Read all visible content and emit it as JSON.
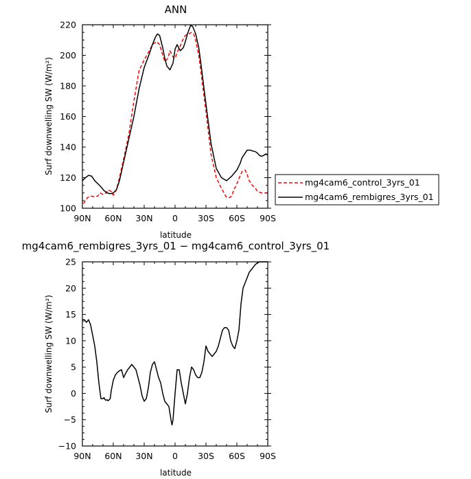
{
  "chart_data": [
    {
      "type": "line",
      "title": "ANN",
      "xlabel": "latitude",
      "ylabel": "Surf downwelling SW (W/m²)",
      "xlim": [
        90,
        -90
      ],
      "ylim": [
        100,
        220
      ],
      "xticks": [
        90,
        60,
        30,
        0,
        -30,
        -60,
        -90
      ],
      "xtick_labels": [
        "90N",
        "60N",
        "30N",
        "0",
        "30S",
        "60S",
        "90S"
      ],
      "yticks": [
        100,
        120,
        140,
        160,
        180,
        200,
        220
      ],
      "ytick_labels": [
        "100",
        "120",
        "140",
        "160",
        "180",
        "200",
        "220"
      ],
      "grid": false,
      "legend_position": "right",
      "series": [
        {
          "name": "mg4cam6_control_3yrs_01",
          "color": "#ff0000",
          "dash": "dashed",
          "x": [
            89,
            85,
            82,
            78,
            75,
            73,
            70,
            67,
            65,
            62,
            60,
            57,
            54,
            50,
            45,
            40,
            35,
            30,
            25,
            22,
            20,
            18,
            15,
            12,
            10,
            7,
            5,
            2,
            0,
            -2,
            -5,
            -8,
            -10,
            -13,
            -16,
            -18,
            -20,
            -23,
            -25,
            -30,
            -35,
            -40,
            -45,
            -50,
            -53,
            -55,
            -57,
            -60,
            -63,
            -65,
            -68,
            -70,
            -72,
            -75,
            -78,
            -80,
            -82,
            -84,
            -86,
            -88,
            -90
          ],
          "y": [
            103,
            107,
            108,
            107.5,
            108,
            110,
            109,
            110,
            112,
            111,
            108.5,
            112,
            120,
            132,
            148,
            170,
            190,
            197,
            203,
            207,
            208,
            209,
            207,
            200,
            196,
            198,
            203,
            199,
            198,
            202,
            206,
            211,
            213,
            214,
            215,
            214,
            210,
            200,
            190,
            163,
            135,
            120,
            113,
            107,
            107,
            108,
            112,
            116,
            121,
            124,
            125,
            122,
            118,
            115,
            113,
            111,
            110.5,
            110,
            110,
            110,
            110
          ]
        },
        {
          "name": "mg4cam6_rembigres_3yrs_01",
          "color": "#000000",
          "dash": "solid",
          "x": [
            90,
            87,
            84,
            81,
            78,
            75,
            72,
            69,
            66,
            63,
            60,
            57,
            54,
            50,
            45,
            40,
            35,
            30,
            25,
            22,
            19,
            17,
            15,
            12,
            10,
            8,
            5,
            2,
            0,
            -2,
            -5,
            -8,
            -10,
            -12,
            -15,
            -17,
            -20,
            -23,
            -25,
            -30,
            -35,
            -40,
            -45,
            -50,
            -55,
            -60,
            -63,
            -65,
            -68,
            -70,
            -73,
            -75,
            -78,
            -80,
            -82,
            -84,
            -86,
            -88,
            -90
          ],
          "y": [
            118,
            120,
            121.5,
            121,
            118,
            116,
            114,
            111.5,
            110,
            109.5,
            110,
            112,
            118,
            130,
            145,
            160,
            178,
            192,
            201,
            207,
            212,
            214,
            213,
            205,
            198,
            193,
            190.5,
            195,
            204,
            207,
            203,
            205,
            209,
            214,
            219.5,
            219,
            214,
            205,
            195,
            168,
            142,
            126,
            120,
            118,
            121,
            125,
            129,
            133,
            136,
            138,
            138,
            137.5,
            137,
            136,
            134.5,
            134,
            134.5,
            135.5,
            135
          ]
        }
      ]
    },
    {
      "type": "line",
      "title": "mg4cam6_rembigres_3yrs_01  −  mg4cam6_control_3yrs_01",
      "xlabel": "latitude",
      "ylabel": "Surf downwelling SW (W/m²)",
      "xlim": [
        90,
        -90
      ],
      "ylim": [
        -10,
        25
      ],
      "xticks": [
        90,
        60,
        30,
        0,
        -30,
        -60,
        -90
      ],
      "xtick_labels": [
        "90N",
        "60N",
        "30N",
        "0",
        "30S",
        "60S",
        "90S"
      ],
      "yticks": [
        -10,
        -5,
        0,
        5,
        10,
        15,
        20,
        25
      ],
      "ytick_labels": [
        "−10",
        "−5",
        "0",
        "5",
        "10",
        "15",
        "20",
        "25"
      ],
      "grid": false,
      "series": [
        {
          "color": "#000000",
          "dash": "solid",
          "x": [
            90,
            88,
            86,
            84,
            82,
            80,
            78,
            76,
            74,
            72,
            70,
            69,
            68,
            67,
            66,
            65,
            64,
            63,
            62,
            60,
            58,
            56,
            54,
            52,
            50,
            48,
            46,
            44,
            42,
            40,
            38,
            36,
            34,
            32,
            30,
            28,
            26,
            24,
            22,
            20,
            18,
            16,
            14,
            12,
            10,
            8,
            6,
            4,
            3,
            2,
            0,
            -2,
            -4,
            -6,
            -8,
            -10,
            -12,
            -14,
            -16,
            -18,
            -20,
            -22,
            -24,
            -26,
            -28,
            -30,
            -32,
            -34,
            -36,
            -38,
            -40,
            -42,
            -44,
            -46,
            -48,
            -50,
            -52,
            -54,
            -56,
            -58,
            -60,
            -62,
            -64,
            -66,
            -68,
            -70,
            -72,
            -74,
            -76,
            -78,
            -80,
            -82,
            -84,
            -86,
            -88,
            -90
          ],
          "y": [
            14,
            14,
            13.5,
            14,
            13,
            11,
            9,
            6,
            2,
            -1,
            -1,
            -0.8,
            -1.2,
            -1.3,
            -1.2,
            -1.4,
            -1.2,
            -1,
            0.5,
            2.5,
            3.5,
            4,
            4.3,
            4.5,
            3,
            3.8,
            4.5,
            5,
            5.5,
            5,
            4.5,
            3,
            1.5,
            -0.5,
            -1.5,
            -1,
            1,
            4,
            5.5,
            6,
            4.5,
            3,
            2,
            0,
            -1.5,
            -2,
            -2.5,
            -5,
            -6,
            -5,
            0,
            4.5,
            4.5,
            2,
            0,
            -2,
            0,
            3,
            5,
            4.5,
            3.5,
            3,
            3,
            4,
            6,
            9,
            8,
            7.5,
            7,
            7.5,
            8,
            9,
            10.5,
            12,
            12.5,
            12.5,
            12,
            10,
            9,
            8.5,
            10,
            12,
            17,
            20,
            21,
            22,
            23,
            23.5,
            24,
            24.5,
            24.8,
            25,
            25,
            25,
            25,
            25
          ]
        }
      ]
    }
  ]
}
